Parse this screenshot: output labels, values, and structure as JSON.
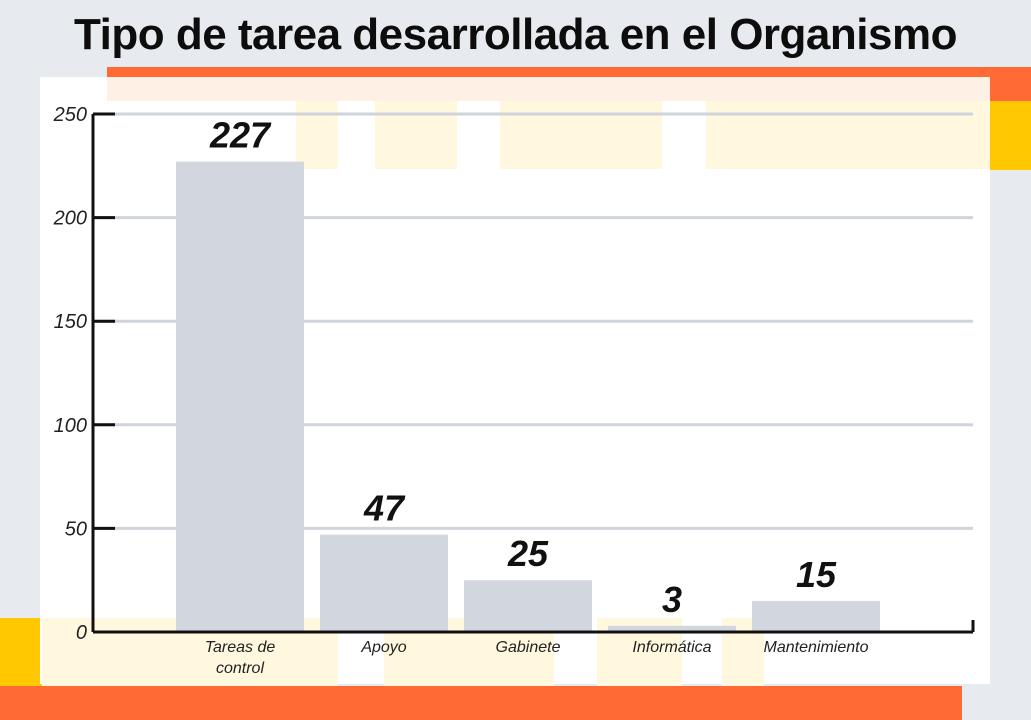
{
  "title": "Tipo de tarea desarrollada en el Organismo",
  "colors": {
    "background": "#e7ebef",
    "panel": "#ffffff",
    "bar": "#d2d6df",
    "grid": "#cfd4da",
    "axis": "#111111",
    "accent_orange": "#ff6a35",
    "accent_yellow": "#ffc800",
    "accent_cream": "#fff8df"
  },
  "chart_data": {
    "type": "bar",
    "title": "Tipo de tarea desarrollada en el Organismo",
    "categories": [
      "Tareas de control",
      "Apoyo",
      "Gabinete",
      "Informática",
      "Mantenimiento"
    ],
    "category_lines": [
      [
        "Tareas de",
        "control"
      ],
      [
        "Apoyo"
      ],
      [
        "Gabinete"
      ],
      [
        "Informática"
      ],
      [
        "Mantenimiento"
      ]
    ],
    "values": [
      227,
      47,
      25,
      3,
      15
    ],
    "value_labels": [
      "227",
      "47",
      "25",
      "3",
      "15"
    ],
    "yticks": [
      0,
      50,
      100,
      150,
      200,
      250
    ],
    "ylim": [
      0,
      250
    ],
    "grid": true,
    "xlabel": "",
    "ylabel": ""
  }
}
